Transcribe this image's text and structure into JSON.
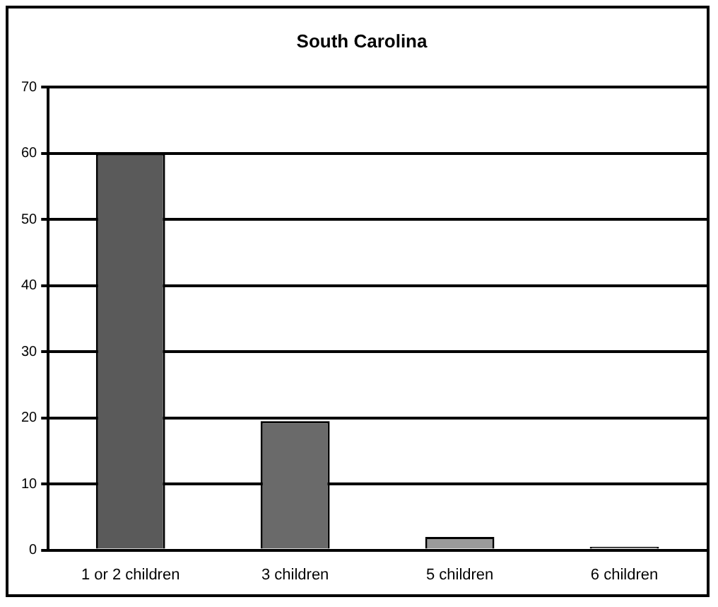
{
  "chart_data": {
    "type": "bar",
    "title": "South Carolina",
    "categories": [
      "1 or 2 children",
      "3 children",
      "5 children",
      "6 children"
    ],
    "values": [
      60,
      19.5,
      2,
      0.5
    ],
    "colors": [
      "#5a5a5a",
      "#6a6a6a",
      "#9a9a9a",
      "#7a7a7a"
    ],
    "ylim": [
      0,
      70
    ],
    "yticks": [
      0,
      10,
      20,
      30,
      40,
      50,
      60,
      70
    ],
    "grid": "y",
    "legend": false
  }
}
